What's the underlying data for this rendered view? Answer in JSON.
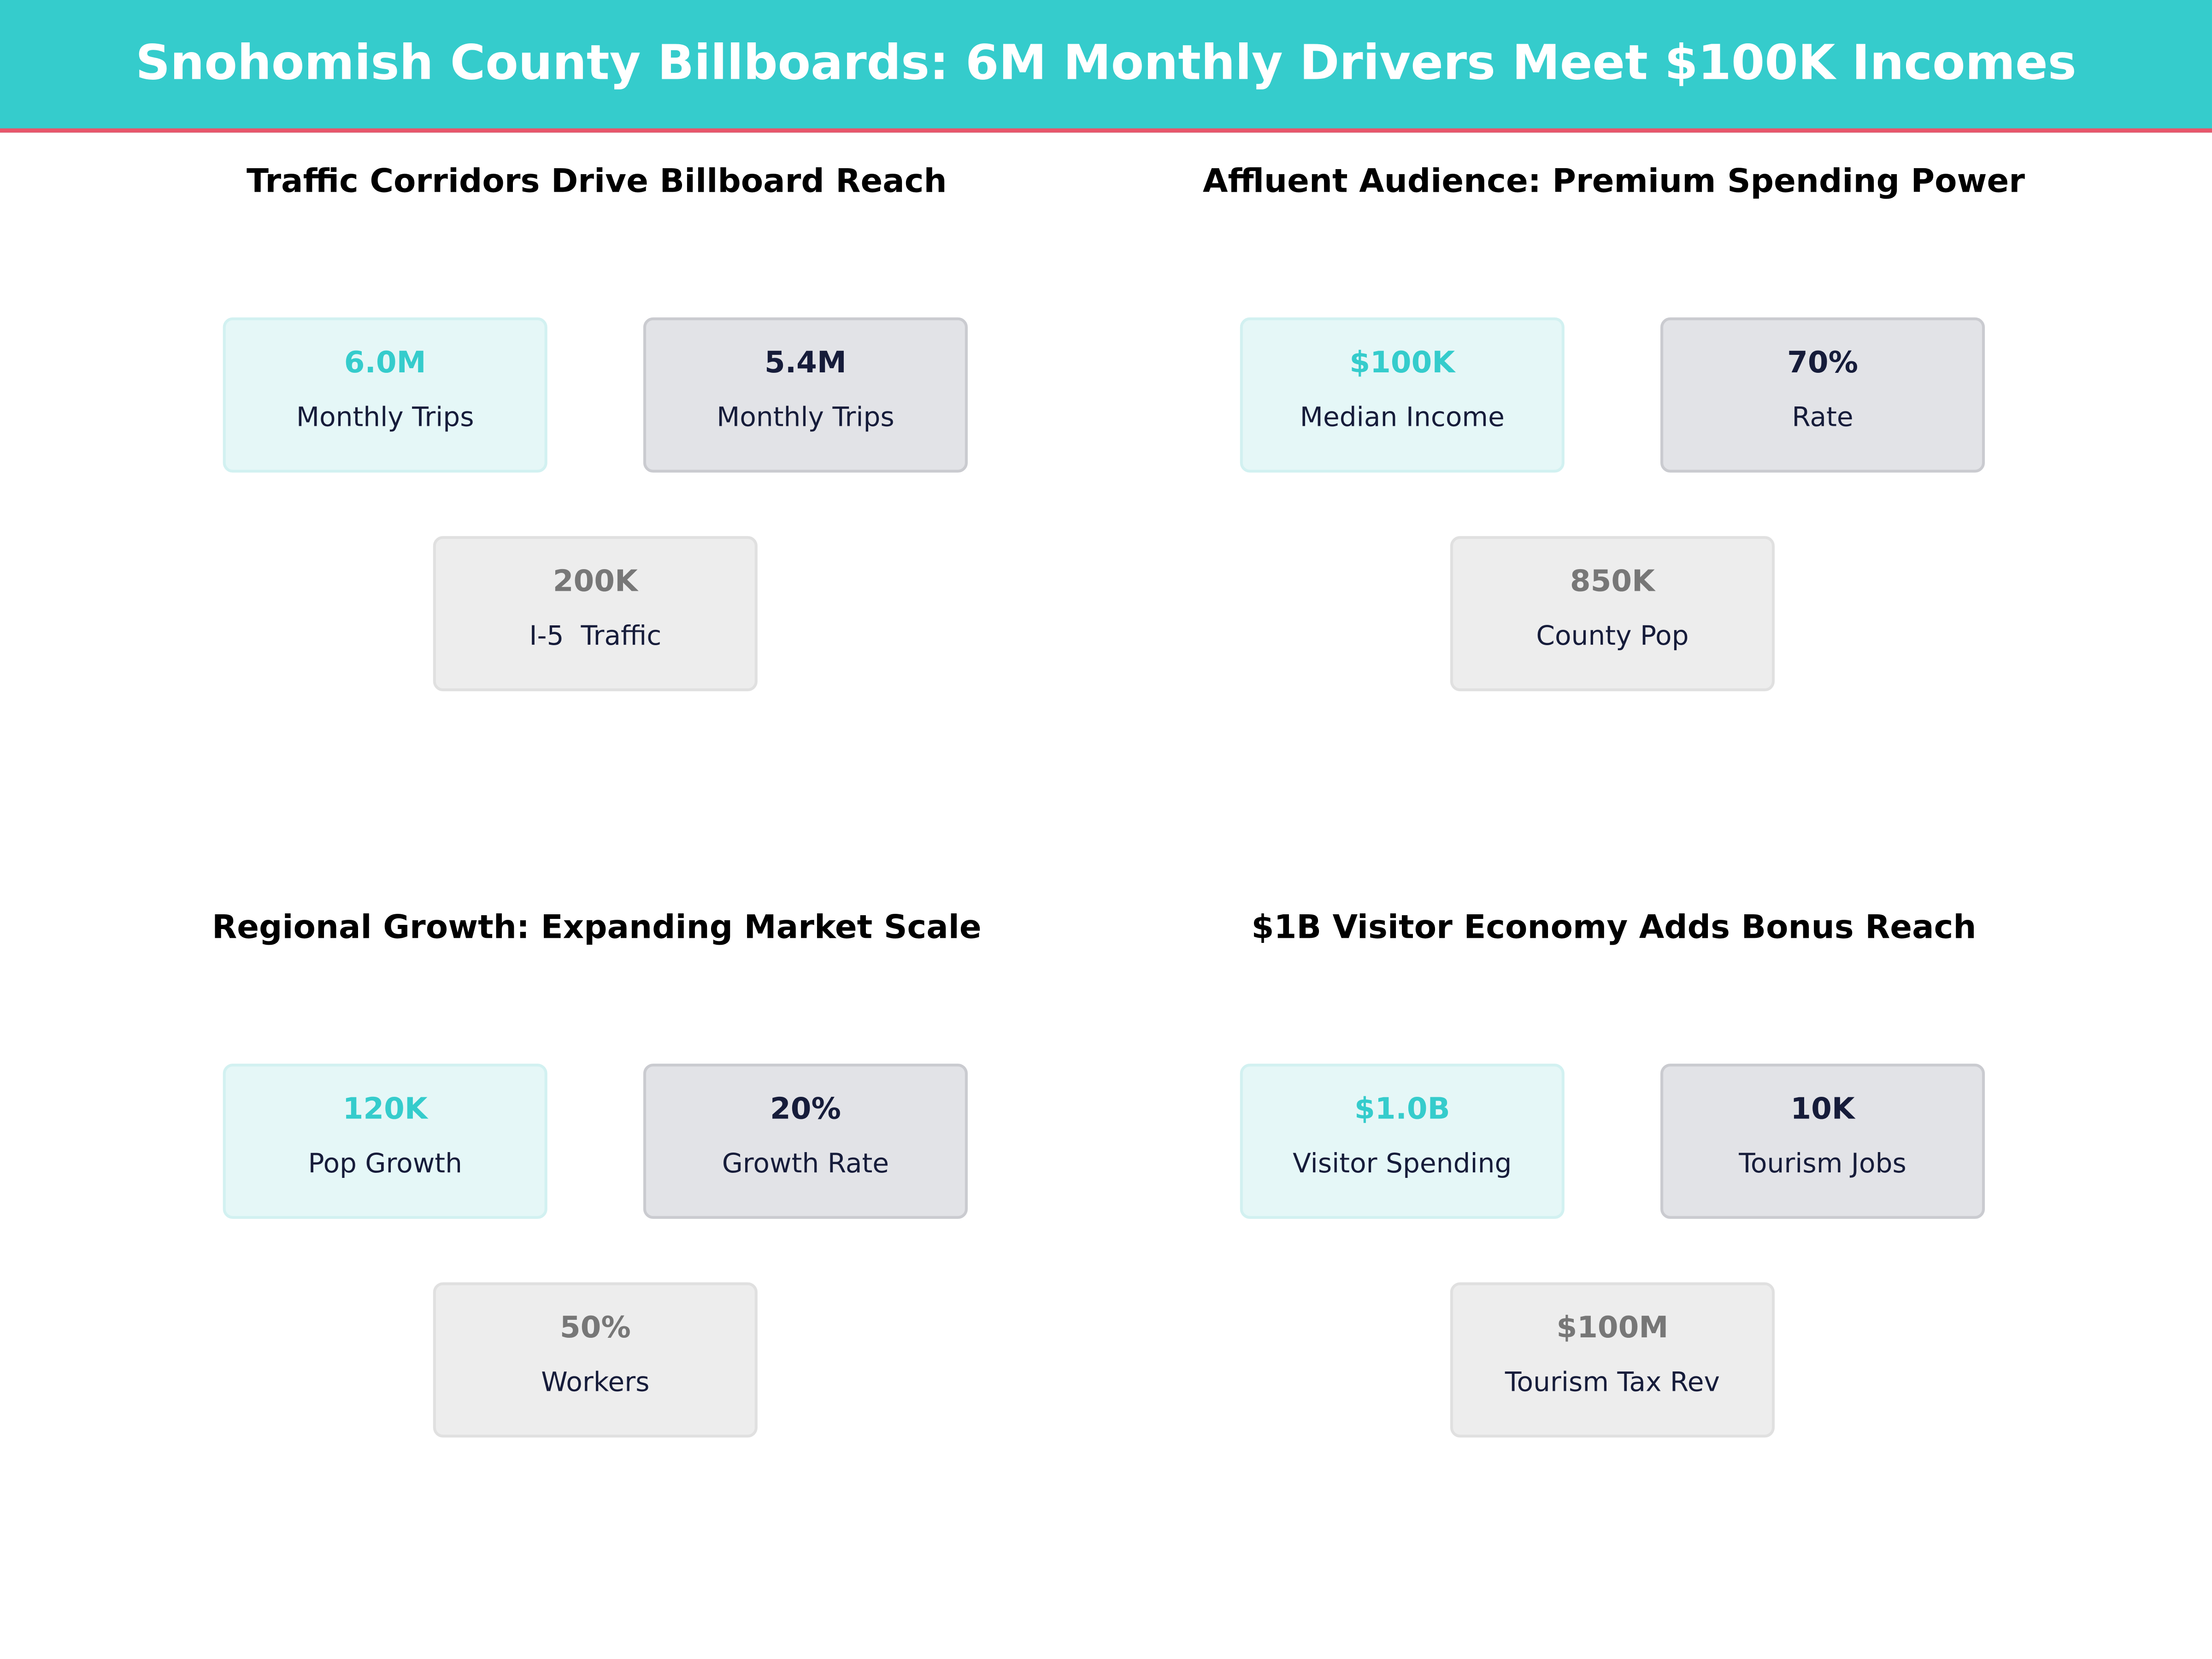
{
  "title": "Snohomish County Billboards: 6M Monthly Drivers Meet $100K Incomes",
  "colors": {
    "header": "#35CCCC",
    "accent_line": "#E8566B",
    "primary": "#35CCCC",
    "dark": "#161C3A",
    "muted": "#777777"
  },
  "chart_data": {
    "type": "table",
    "panels": [
      {
        "title": "Traffic Corridors Drive Billboard Reach",
        "cards": [
          {
            "value": "6.0M",
            "label": "Monthly Trips",
            "style": "primary"
          },
          {
            "value": "5.4M",
            "label": "Monthly Trips",
            "style": "dark"
          },
          {
            "value": "200K",
            "label": "I-5  Traffic",
            "style": "muted"
          }
        ]
      },
      {
        "title": "Affluent Audience: Premium Spending Power",
        "cards": [
          {
            "value": "$100K",
            "label": "Median Income",
            "style": "primary"
          },
          {
            "value": "70%",
            "label": "Rate",
            "style": "dark"
          },
          {
            "value": "850K",
            "label": "County Pop",
            "style": "muted"
          }
        ]
      },
      {
        "title": "Regional Growth: Expanding Market Scale",
        "cards": [
          {
            "value": "120K",
            "label": "Pop Growth",
            "style": "primary"
          },
          {
            "value": "20%",
            "label": "Growth Rate",
            "style": "dark"
          },
          {
            "value": "50%",
            "label": "Workers",
            "style": "muted"
          }
        ]
      },
      {
        "title": "$1B Visitor Economy Adds Bonus Reach",
        "cards": [
          {
            "value": "$1.0B",
            "label": "Visitor Spending",
            "style": "primary"
          },
          {
            "value": "10K",
            "label": "Tourism Jobs",
            "style": "dark"
          },
          {
            "value": "$100M",
            "label": "Tourism Tax Rev",
            "style": "muted"
          }
        ]
      }
    ]
  }
}
